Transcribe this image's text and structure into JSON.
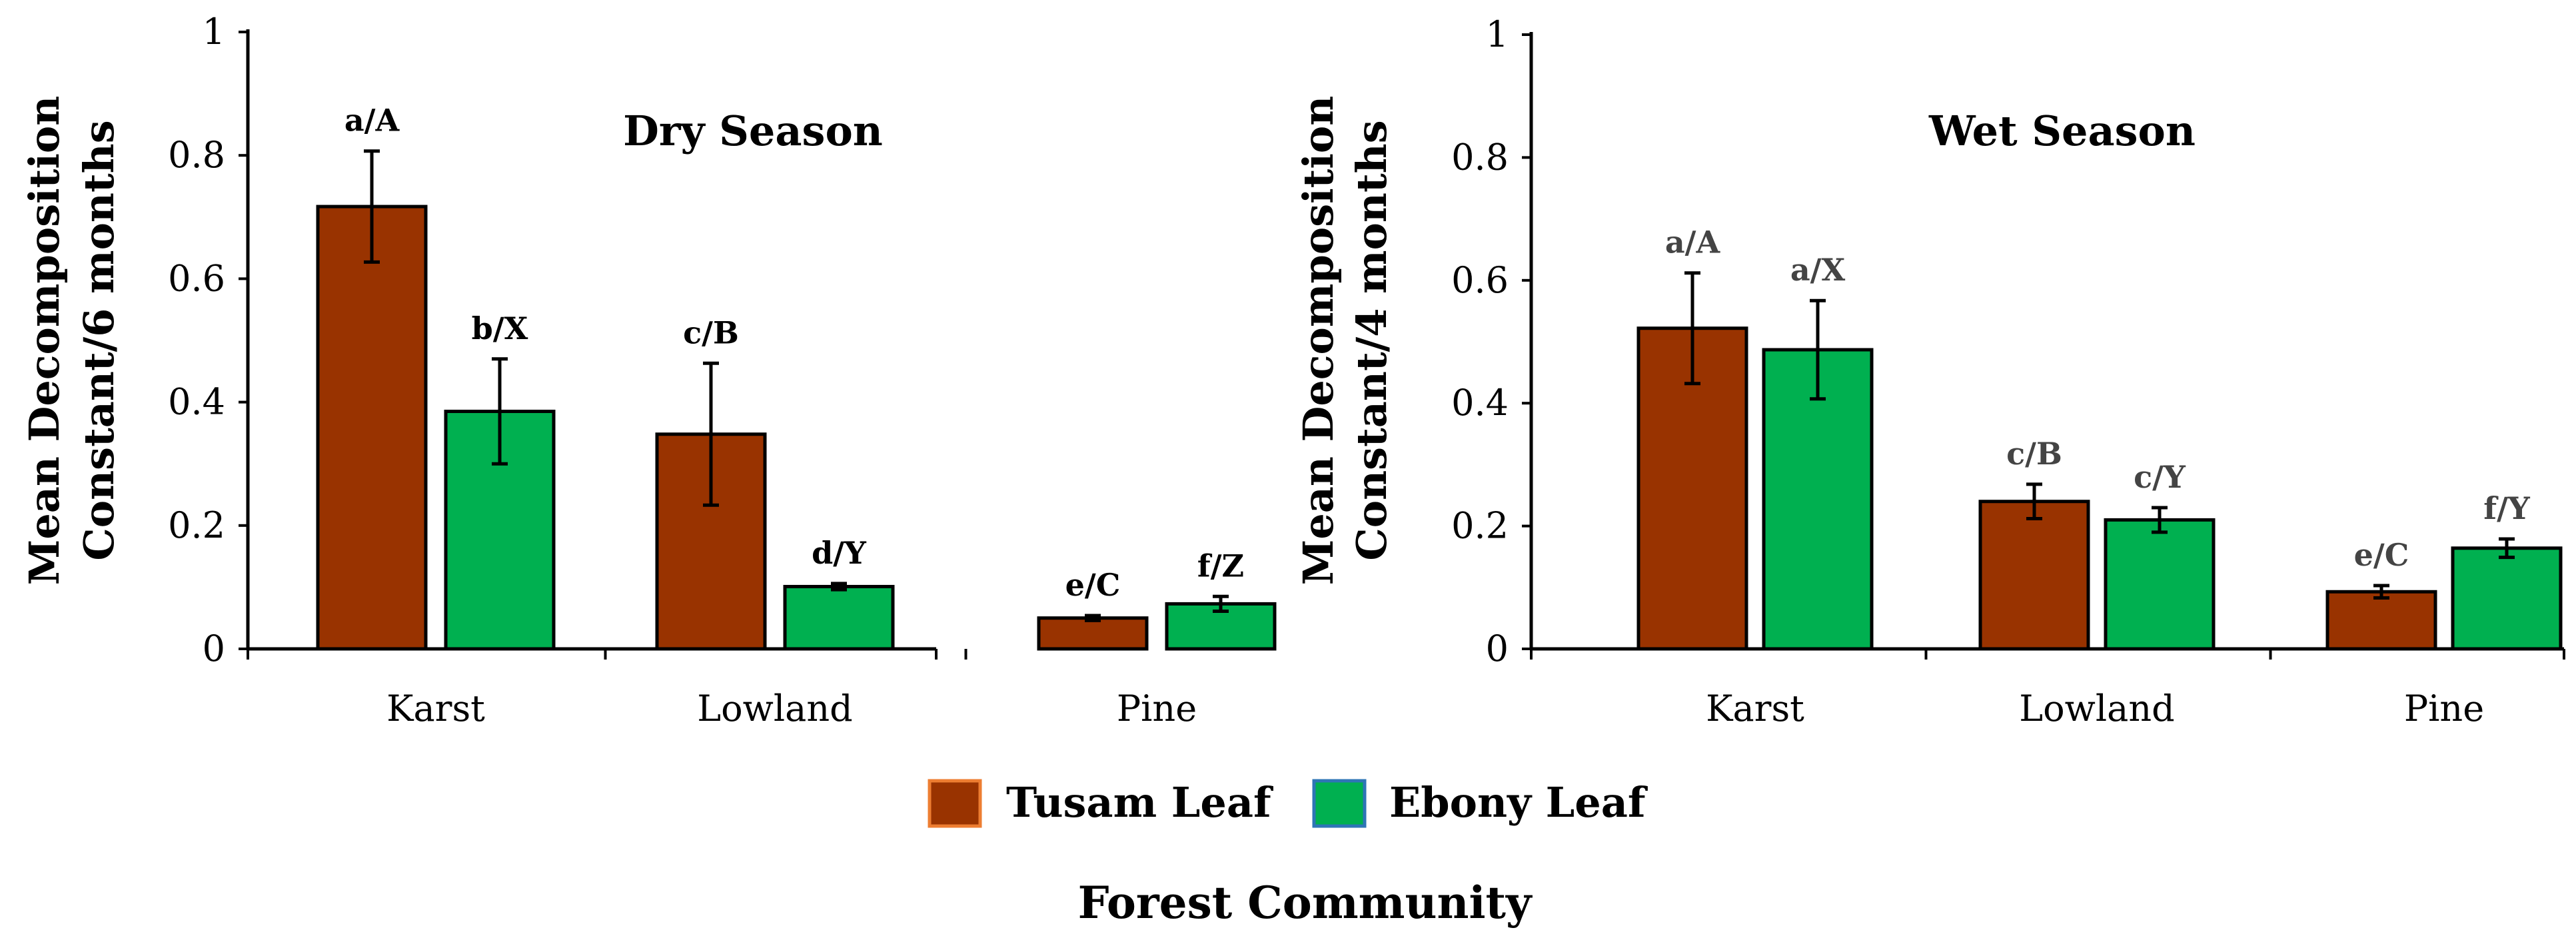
{
  "chart_data": [
    {
      "type": "bar",
      "title": "Dry Season",
      "ylabel_lines": [
        "Mean Decomposition",
        "Constant/6 months"
      ],
      "categories": [
        "Karst",
        "Lowland",
        "Pine"
      ],
      "ylim": [
        0,
        1
      ],
      "yticks": [
        "0",
        "0.2",
        "0.4",
        "0.6",
        "0.8",
        "1"
      ],
      "series": [
        {
          "name": "Tusam Leaf",
          "color": "#993300",
          "values": [
            0.717,
            0.348,
            0.05
          ],
          "errors": [
            0.09,
            0.115,
            0.004
          ],
          "labels": [
            "a/A",
            "c/B",
            "e/C"
          ]
        },
        {
          "name": "Ebony Leaf",
          "color": "#00B050",
          "values": [
            0.385,
            0.101,
            0.073
          ],
          "errors": [
            0.085,
            0.005,
            0.012
          ],
          "labels": [
            "b/X",
            "d/Y",
            "f/Z"
          ]
        }
      ]
    },
    {
      "type": "bar",
      "title": "Wet Season",
      "ylabel_lines": [
        "Mean Decomposition",
        "Constant/4 months"
      ],
      "categories": [
        "Karst",
        "Lowland",
        "Pine"
      ],
      "ylim": [
        0,
        1
      ],
      "yticks": [
        "0",
        "0.2",
        "0.4",
        "0.6",
        "0.8",
        "1"
      ],
      "series": [
        {
          "name": "Tusam Leaf",
          "color": "#993300",
          "values": [
            0.522,
            0.24,
            0.093
          ],
          "errors": [
            0.09,
            0.028,
            0.01
          ],
          "labels": [
            "a/A",
            "c/B",
            "e/C"
          ]
        },
        {
          "name": "Ebony Leaf",
          "color": "#00B050",
          "values": [
            0.487,
            0.21,
            0.164
          ],
          "errors": [
            0.08,
            0.02,
            0.015
          ],
          "labels": [
            "a/X",
            "c/Y",
            "f/Y"
          ]
        }
      ]
    }
  ],
  "legend": {
    "items": [
      {
        "label": "Tusam Leaf",
        "color": "#993300",
        "border": "#ED7D31"
      },
      {
        "label": "Ebony Leaf",
        "color": "#00B050",
        "border": "#2E75B6"
      }
    ]
  },
  "xlabel": "Forest Community"
}
